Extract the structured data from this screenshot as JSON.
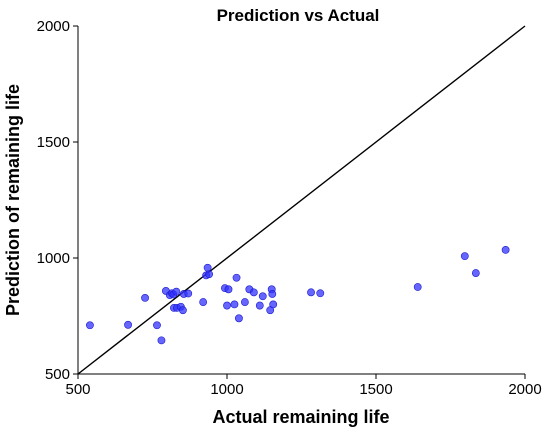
{
  "chart_data": {
    "type": "scatter",
    "title": "Prediction vs Actual",
    "xlabel": "Actual remaining life",
    "ylabel": "Prediction of remaining life",
    "xlim": [
      500,
      2000
    ],
    "ylim": [
      500,
      2000
    ],
    "xticks": [
      500,
      1000,
      1500,
      2000
    ],
    "yticks": [
      500,
      1000,
      1500,
      2000
    ],
    "grid": false,
    "reference_line": {
      "from": [
        500,
        500
      ],
      "to": [
        2000,
        2000
      ],
      "color": "#000000"
    },
    "point_color": "#3333ff",
    "points": [
      [
        540,
        710
      ],
      [
        668,
        712
      ],
      [
        725,
        828
      ],
      [
        765,
        710
      ],
      [
        780,
        645
      ],
      [
        795,
        858
      ],
      [
        808,
        840
      ],
      [
        815,
        848
      ],
      [
        820,
        843
      ],
      [
        822,
        785
      ],
      [
        830,
        855
      ],
      [
        832,
        785
      ],
      [
        845,
        790
      ],
      [
        852,
        775
      ],
      [
        855,
        845
      ],
      [
        870,
        847
      ],
      [
        920,
        810
      ],
      [
        930,
        925
      ],
      [
        935,
        958
      ],
      [
        940,
        930
      ],
      [
        993,
        870
      ],
      [
        1000,
        795
      ],
      [
        1005,
        865
      ],
      [
        1025,
        800
      ],
      [
        1032,
        915
      ],
      [
        1040,
        740
      ],
      [
        1060,
        810
      ],
      [
        1075,
        865
      ],
      [
        1090,
        852
      ],
      [
        1110,
        795
      ],
      [
        1120,
        835
      ],
      [
        1145,
        775
      ],
      [
        1150,
        865
      ],
      [
        1152,
        845
      ],
      [
        1155,
        800
      ],
      [
        1282,
        852
      ],
      [
        1313,
        848
      ],
      [
        1640,
        875
      ],
      [
        1798,
        1008
      ],
      [
        1835,
        935
      ],
      [
        1935,
        1035
      ]
    ]
  }
}
